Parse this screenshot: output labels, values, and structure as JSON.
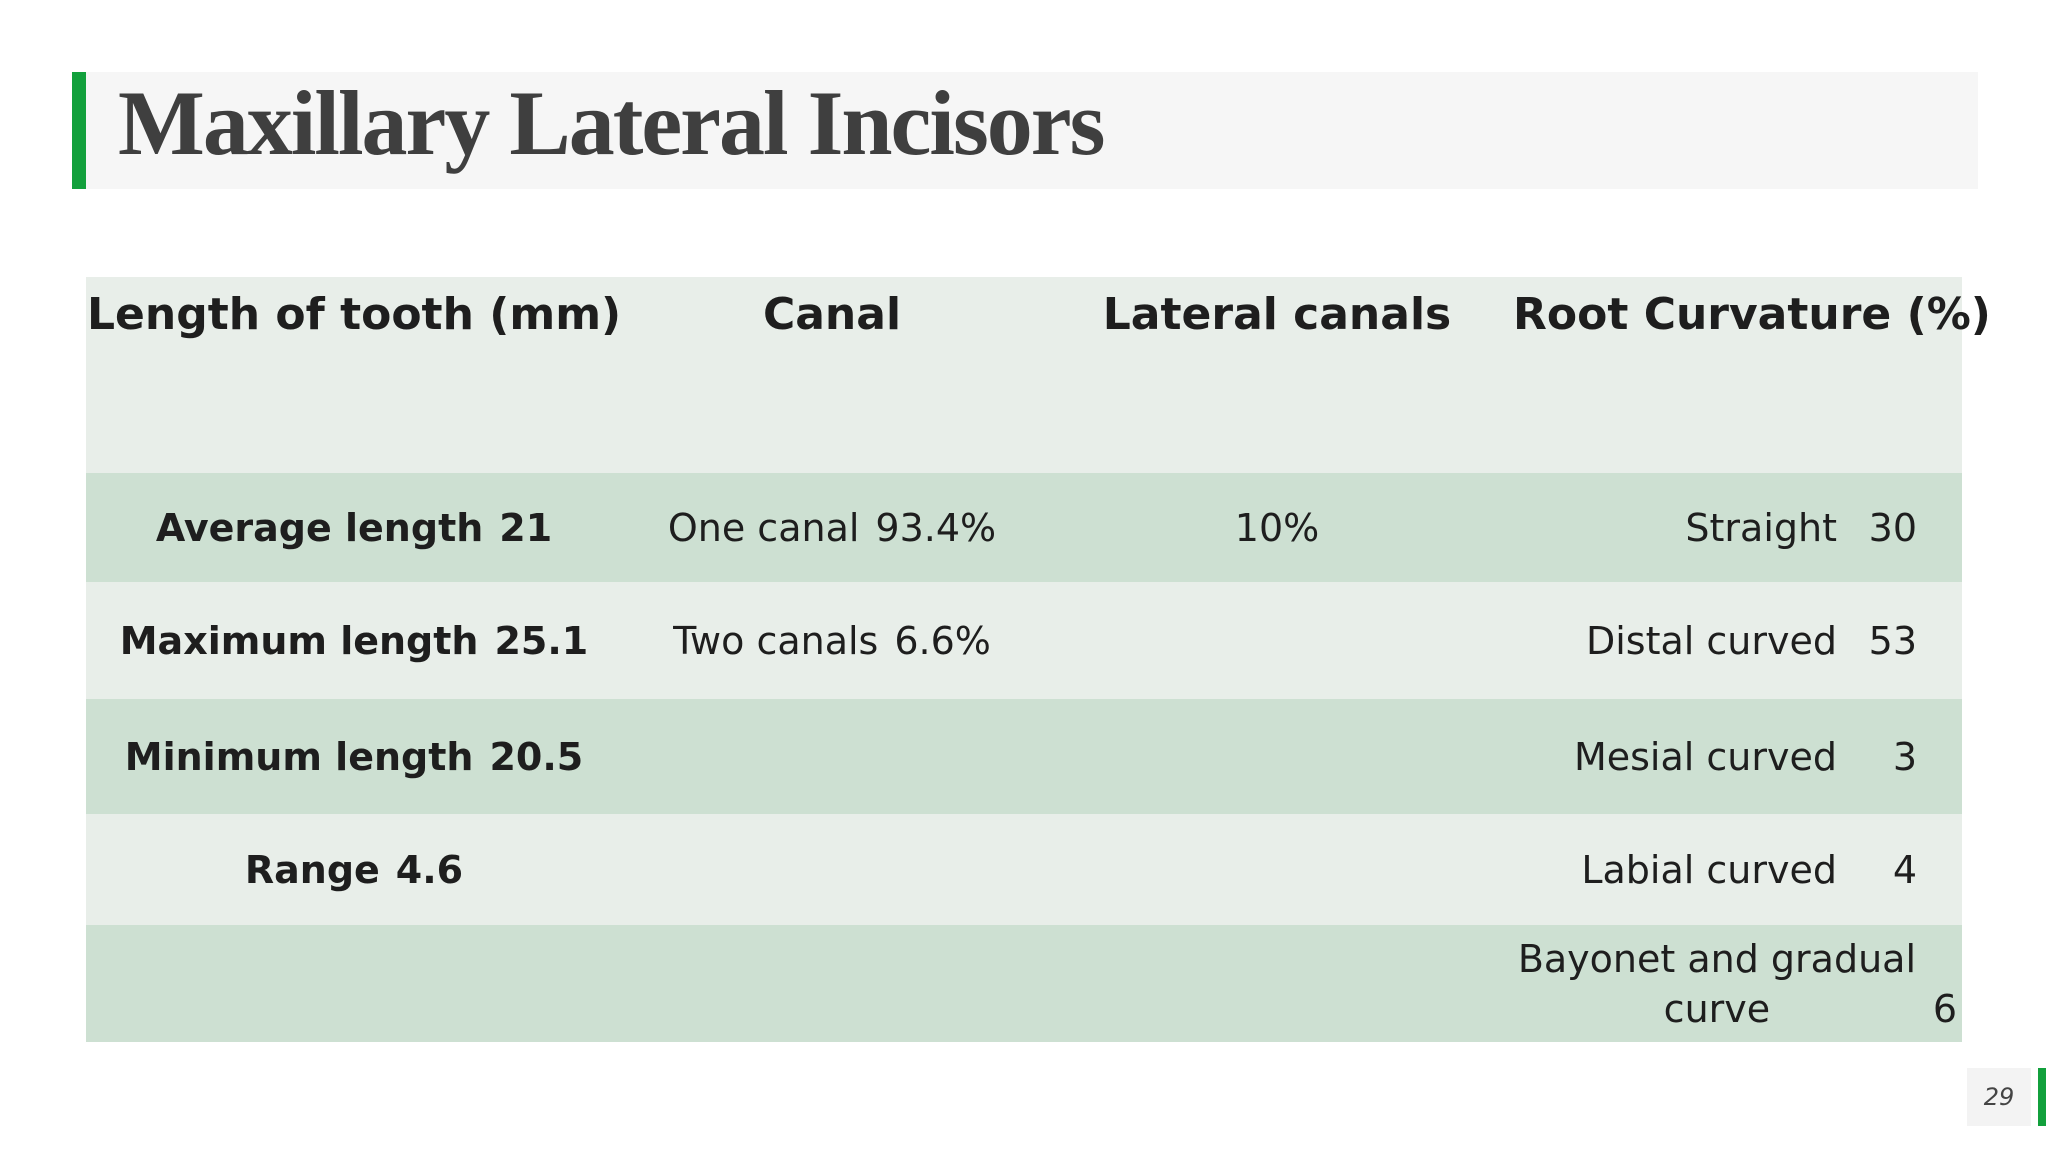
{
  "header": {
    "title": "Maxillary Lateral Incisors"
  },
  "table": {
    "columns": [
      "Length of tooth (mm)",
      "Canal",
      "Lateral canals",
      "Root Curvature (%)"
    ],
    "rows": [
      {
        "length": {
          "label": "Average length",
          "value": "21"
        },
        "canal": {
          "label": "One canal",
          "value": "93.4%"
        },
        "lateral": "10%",
        "curvature": {
          "label": "Straight",
          "value": "30"
        }
      },
      {
        "length": {
          "label": "Maximum length",
          "value": "25.1"
        },
        "canal": {
          "label": "Two canals",
          "value": "6.6%"
        },
        "curvature": {
          "label": "Distal curved",
          "value": "53"
        }
      },
      {
        "length": {
          "label": "Minimum length",
          "value": "20.5"
        },
        "curvature": {
          "label": "Mesial curved",
          "value": "3"
        }
      },
      {
        "length": {
          "label": "Range",
          "value": "4.6"
        },
        "curvature": {
          "label": "Labial curved",
          "value": "4"
        }
      },
      {
        "curvature": {
          "label": "Bayonet and gradual curve",
          "value": "6"
        }
      }
    ]
  },
  "footer": {
    "page_number": "29"
  }
}
